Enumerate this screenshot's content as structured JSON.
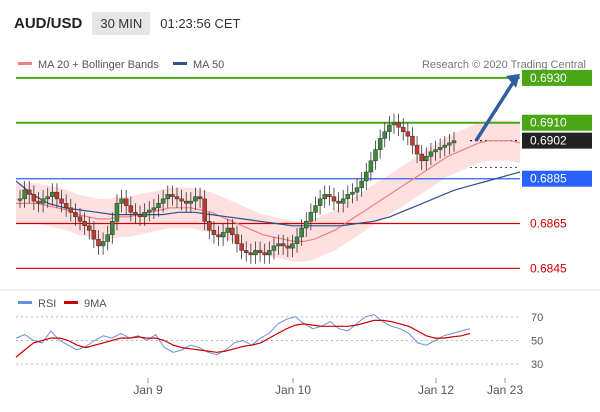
{
  "header": {
    "symbol": "AUD/USD",
    "timeframe": "30 MIN",
    "time": "01:23:56 CET"
  },
  "legend": {
    "ma20": {
      "label": "MA 20 + Bollinger Bands",
      "color": "#f08080"
    },
    "ma50": {
      "label": "MA 50",
      "color": "#2f4f8f"
    }
  },
  "credit": "Research © 2020 Trading Central",
  "rsi_legend": {
    "rsi": {
      "label": "RSI",
      "color": "#6b8fd6"
    },
    "ma9": {
      "label": "9MA",
      "color": "#cc0000"
    }
  },
  "chart_data": {
    "type": "line",
    "ylim": [
      0.6838,
      0.6938
    ],
    "levels": [
      {
        "value": 0.693,
        "label": "0.6930",
        "color": "#4aa614",
        "kind": "target"
      },
      {
        "value": 0.691,
        "label": "0.6910",
        "color": "#4aa614",
        "kind": "resistance"
      },
      {
        "value": 0.6902,
        "label": "0.6902",
        "color": "#222222",
        "kind": "last"
      },
      {
        "value": 0.6885,
        "label": "0.6885",
        "color": "#2962ff",
        "kind": "pivot"
      },
      {
        "value": 0.6865,
        "label": "0.6865",
        "color": "#cc0000",
        "kind": "support"
      },
      {
        "value": 0.6845,
        "label": "0.6845",
        "color": "#cc0000",
        "kind": "support"
      }
    ],
    "x_ticks": [
      "Jan 9",
      "Jan 10",
      "Jan 12",
      "Jan 23"
    ],
    "price": [
      0.6876,
      0.688,
      0.6878,
      0.6875,
      0.6874,
      0.6876,
      0.6877,
      0.6879,
      0.6876,
      0.6874,
      0.6872,
      0.687,
      0.6868,
      0.6866,
      0.6864,
      0.6862,
      0.6858,
      0.6855,
      0.6857,
      0.686,
      0.6866,
      0.6874,
      0.6876,
      0.6873,
      0.687,
      0.6869,
      0.6868,
      0.687,
      0.6871,
      0.6872,
      0.6874,
      0.6876,
      0.6878,
      0.6877,
      0.6876,
      0.6875,
      0.6874,
      0.6875,
      0.6877,
      0.6876,
      0.6866,
      0.6862,
      0.686,
      0.6859,
      0.6861,
      0.6863,
      0.686,
      0.6856,
      0.6853,
      0.6852,
      0.6851,
      0.6853,
      0.6852,
      0.6851,
      0.6853,
      0.6855,
      0.6856,
      0.6855,
      0.6854,
      0.6856,
      0.6859,
      0.6863,
      0.6866,
      0.687,
      0.6873,
      0.6876,
      0.6878,
      0.6877,
      0.6875,
      0.6874,
      0.6876,
      0.6878,
      0.6879,
      0.6881,
      0.6884,
      0.6888,
      0.6893,
      0.6898,
      0.6903,
      0.6906,
      0.6909,
      0.691,
      0.6908,
      0.6906,
      0.6904,
      0.69,
      0.6896,
      0.6893,
      0.6895,
      0.6897,
      0.6898,
      0.6899,
      0.69,
      0.6901,
      0.6902
    ],
    "ma20": [
      0.6874,
      0.6874,
      0.6874,
      0.6873,
      0.6872,
      0.6871,
      0.6869,
      0.6868,
      0.6867,
      0.6867,
      0.6868,
      0.6868,
      0.6869,
      0.687,
      0.6871,
      0.6872,
      0.6872,
      0.6872,
      0.6871,
      0.687,
      0.6868,
      0.6866,
      0.6864,
      0.6862,
      0.686,
      0.6859,
      0.6858,
      0.6857,
      0.6857,
      0.6858,
      0.686,
      0.6862,
      0.6865,
      0.6868,
      0.6871,
      0.6874,
      0.6877,
      0.688,
      0.6883,
      0.6886,
      0.6889,
      0.6892,
      0.6895,
      0.6897,
      0.6899,
      0.6901,
      0.6902,
      0.6902,
      0.6902,
      0.6901
    ],
    "ma50": [
      0.6884,
      0.6878,
      0.6874,
      0.6872,
      0.6871,
      0.687,
      0.6869,
      0.6869,
      0.6869,
      0.6869,
      0.687,
      0.687,
      0.6869,
      0.6868,
      0.6867,
      0.6866,
      0.6865,
      0.6864,
      0.6864,
      0.6864,
      0.6864,
      0.6865,
      0.6866,
      0.6868,
      0.6871,
      0.6874,
      0.6877,
      0.688,
      0.6882,
      0.6884,
      0.6886,
      0.6888
    ],
    "rsi": [
      52,
      55,
      50,
      48,
      58,
      50,
      46,
      42,
      45,
      50,
      54,
      52,
      56,
      52,
      54,
      50,
      55,
      44,
      40,
      42,
      46,
      44,
      40,
      38,
      42,
      48,
      50,
      46,
      52,
      56,
      64,
      68,
      70,
      64,
      60,
      62,
      66,
      60,
      58,
      64,
      70,
      72,
      66,
      62,
      60,
      56,
      48,
      46,
      50,
      54,
      56,
      58,
      60
    ],
    "rsi_ma9": [
      36,
      42,
      48,
      50,
      52,
      52,
      50,
      46,
      44,
      46,
      48,
      50,
      52,
      52,
      53,
      52,
      52,
      50,
      46,
      44,
      43,
      42,
      41,
      40,
      41,
      43,
      45,
      46,
      48,
      52,
      56,
      60,
      63,
      64,
      63,
      62,
      62,
      62,
      62,
      63,
      65,
      67,
      67,
      66,
      64,
      62,
      58,
      54,
      52,
      52,
      53,
      54,
      56
    ],
    "rsi_levels": [
      30,
      50,
      70
    ],
    "rsi_ylim": [
      20,
      80
    ]
  }
}
